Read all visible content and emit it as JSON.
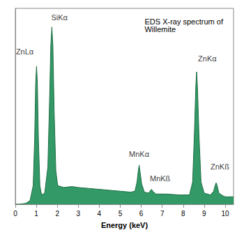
{
  "chart_data": {
    "type": "area",
    "title": "EDS X-ray spectrum of Willemite",
    "x_label": "Energy (keV)",
    "color": "#339966",
    "grid": false,
    "tick_labels": "x",
    "xlim": [
      0,
      10.4
    ],
    "xticks": [
      0,
      1,
      2,
      3,
      4,
      5,
      6,
      7,
      8,
      9,
      10
    ],
    "ylim": [
      0,
      105
    ],
    "x": [
      0,
      0.2,
      0.5,
      0.7,
      0.85,
      0.92,
      0.97,
      1.01,
      1.05,
      1.1,
      1.17,
      1.25,
      1.4,
      1.55,
      1.63,
      1.69,
      1.74,
      1.79,
      1.85,
      1.93,
      2.02,
      2.3,
      2.7,
      3.0,
      3.5,
      4.0,
      4.5,
      5.0,
      5.5,
      5.7,
      5.8,
      5.85,
      5.9,
      5.95,
      6.02,
      6.15,
      6.35,
      6.45,
      6.49,
      6.55,
      6.7,
      7.2,
      7.8,
      8.3,
      8.45,
      8.54,
      8.6,
      8.64,
      8.68,
      8.75,
      8.85,
      9.0,
      9.3,
      9.45,
      9.52,
      9.57,
      9.62,
      9.7,
      9.9,
      10.0,
      10.2,
      10.4
    ],
    "values": [
      0,
      0,
      0.5,
      2,
      10,
      35,
      65,
      74,
      65,
      35,
      10,
      5,
      6,
      20,
      55,
      85,
      95,
      85,
      50,
      18,
      10,
      9,
      9.5,
      9,
      8.5,
      8,
      7.5,
      7,
      6.5,
      7,
      12,
      17,
      21,
      17,
      11,
      6.5,
      6,
      7.5,
      8,
      7,
      5.5,
      5.5,
      5,
      5,
      12,
      40,
      63,
      71,
      63,
      38,
      12,
      6,
      5,
      7,
      10,
      11.5,
      10,
      6,
      4.5,
      4,
      4,
      4
    ],
    "annotations": [
      {
        "text": "ZnLα",
        "x": 0.45,
        "y": 82
      },
      {
        "text": "SiKα",
        "x": 2.1,
        "y": 100
      },
      {
        "text": "MnKα",
        "x": 5.9,
        "y": 27
      },
      {
        "text": "MnKß",
        "x": 6.9,
        "y": 14
      },
      {
        "text": "ZnKα",
        "x": 9.15,
        "y": 78
      },
      {
        "text": "ZnKß",
        "x": 9.75,
        "y": 20
      }
    ]
  }
}
